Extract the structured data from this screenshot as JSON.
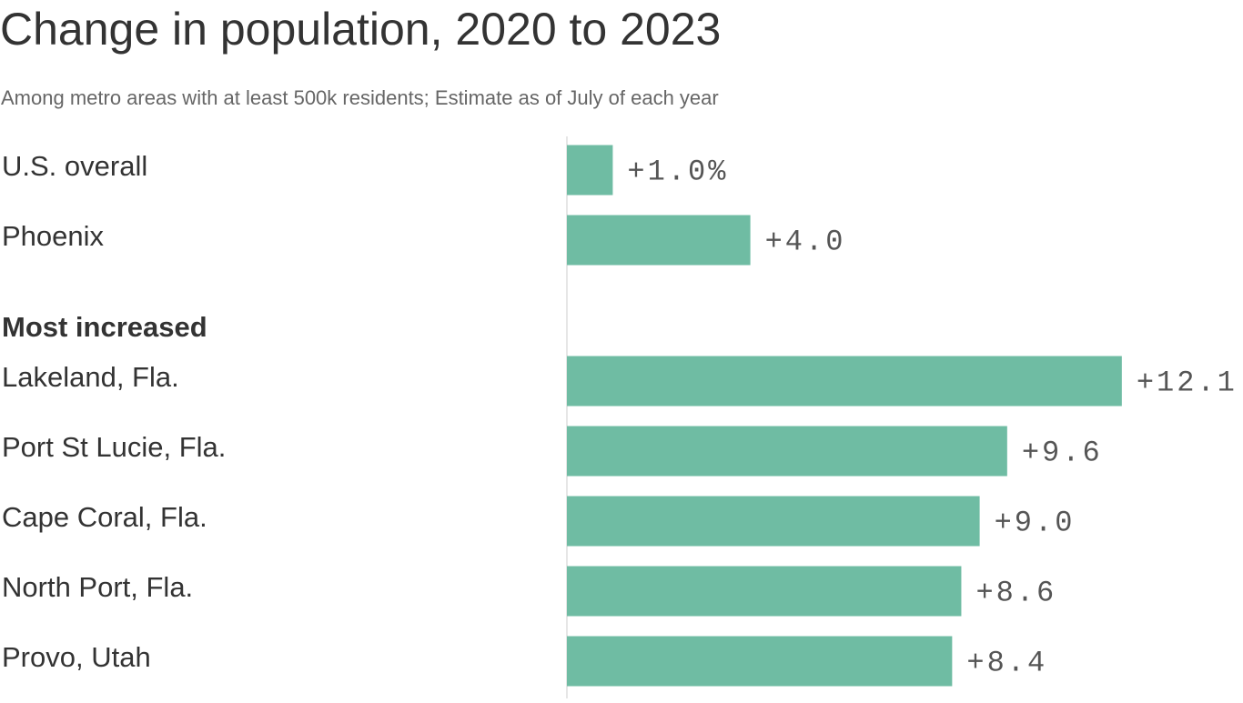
{
  "chart_data": {
    "type": "bar",
    "orientation": "horizontal",
    "title": "Change in population, 2020 to 2023",
    "subtitle": "Among metro areas with at least 500k residents; Estimate as of July of each year",
    "color": "#6fbca3",
    "groups": [
      {
        "categories": [
          "U.S. overall",
          "Phoenix"
        ],
        "values": [
          1.0,
          4.0
        ],
        "value_labels": [
          "+1.0%",
          "+4.0"
        ]
      },
      {
        "label": "Most increased",
        "categories": [
          "Lakeland, Fla.",
          "Port St Lucie, Fla.",
          "Cape Coral, Fla.",
          "North Port, Fla.",
          "Provo, Utah"
        ],
        "values": [
          12.1,
          9.6,
          9.0,
          8.6,
          8.4
        ],
        "value_labels": [
          "+12.1",
          "+9.6",
          "+9.0",
          "+8.6",
          "+8.4"
        ]
      }
    ]
  }
}
